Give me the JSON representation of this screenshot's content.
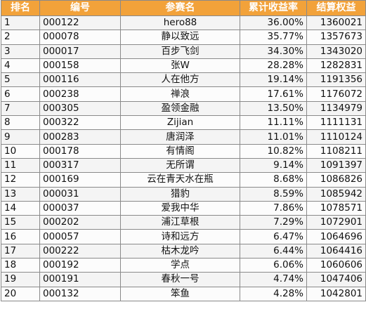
{
  "headers": [
    "排名",
    "编号",
    "参赛名",
    "累计收益率",
    "结算权益"
  ],
  "rows": [
    {
      "rank": "1",
      "id": "000122",
      "name": "hero88",
      "rate": "36.00%",
      "equity": "1360021"
    },
    {
      "rank": "2",
      "id": "000078",
      "name": "静以致远",
      "rate": "35.77%",
      "equity": "1357673"
    },
    {
      "rank": "3",
      "id": "000017",
      "name": "百步飞剑",
      "rate": "34.30%",
      "equity": "1343020"
    },
    {
      "rank": "4",
      "id": "000158",
      "name": "张W",
      "rate": "28.28%",
      "equity": "1282831"
    },
    {
      "rank": "5",
      "id": "000116",
      "name": "人在他方",
      "rate": "19.14%",
      "equity": "1191356"
    },
    {
      "rank": "6",
      "id": "000238",
      "name": "禅浪",
      "rate": "17.61%",
      "equity": "1176072"
    },
    {
      "rank": "7",
      "id": "000305",
      "name": "盈领金融",
      "rate": "13.50%",
      "equity": "1134979"
    },
    {
      "rank": "8",
      "id": "000322",
      "name": "Zijian",
      "rate": "11.11%",
      "equity": "1111131"
    },
    {
      "rank": "9",
      "id": "000283",
      "name": "唐润泽",
      "rate": "11.01%",
      "equity": "1110124"
    },
    {
      "rank": "10",
      "id": "000178",
      "name": "有情阁",
      "rate": "10.82%",
      "equity": "1108211"
    },
    {
      "rank": "11",
      "id": "000317",
      "name": "无所谓",
      "rate": "9.14%",
      "equity": "1091397"
    },
    {
      "rank": "12",
      "id": "000169",
      "name": "云在青天水在瓶",
      "rate": "8.68%",
      "equity": "1086826"
    },
    {
      "rank": "13",
      "id": "000031",
      "name": "猎豹",
      "rate": "8.59%",
      "equity": "1085942"
    },
    {
      "rank": "14",
      "id": "000037",
      "name": "爱我中华",
      "rate": "7.86%",
      "equity": "1078571"
    },
    {
      "rank": "15",
      "id": "000202",
      "name": "浦江草根",
      "rate": "7.29%",
      "equity": "1072901"
    },
    {
      "rank": "16",
      "id": "000057",
      "name": "诗和远方",
      "rate": "6.47%",
      "equity": "1064696"
    },
    {
      "rank": "17",
      "id": "000222",
      "name": "枯木龙吟",
      "rate": "6.44%",
      "equity": "1064416"
    },
    {
      "rank": "18",
      "id": "000192",
      "name": "学点",
      "rate": "6.06%",
      "equity": "1060606"
    },
    {
      "rank": "19",
      "id": "000191",
      "name": "春秋一号",
      "rate": "4.74%",
      "equity": "1047406"
    },
    {
      "rank": "20",
      "id": "000132",
      "name": "笨鱼",
      "rate": "4.28%",
      "equity": "1042801"
    }
  ],
  "colors": {
    "header_bg": "#f2a23a",
    "header_text": "#ffffff",
    "grid": "#8a8a8a"
  }
}
